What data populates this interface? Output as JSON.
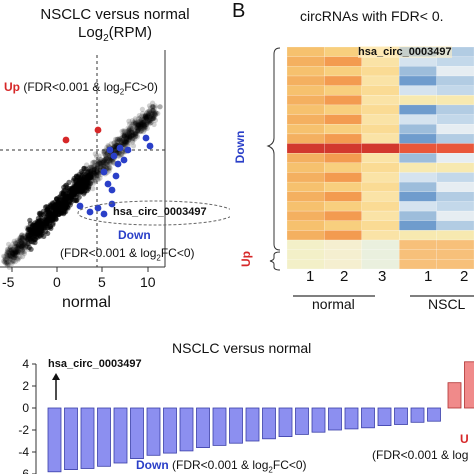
{
  "panelA": {
    "title_line1": "NSCLC versus normal",
    "title_line2_main": "Log",
    "title_line2_sub": "2",
    "title_line2_tail": "(RPM)",
    "up_label": "Up",
    "up_criteria_a": "(FDR<0.001 & log",
    "up_criteria_sub": "2",
    "up_criteria_b": "FC>0)",
    "callout": "hsa_circ_0003497",
    "down_label": "Down",
    "down_criteria_a": "(FDR<0.001 & log",
    "down_criteria_sub": "2",
    "down_criteria_b": "FC<0)",
    "xlabel": "normal",
    "xticks": [
      "-5",
      "0",
      "5",
      "10"
    ]
  },
  "panelB": {
    "letter": "B",
    "title": "circRNAs with FDR< 0.",
    "top_label": "hsa_circ_0003497",
    "down_label": "Down",
    "up_label": "Up",
    "normal_cols": [
      "1",
      "2",
      "3"
    ],
    "nsclc_cols": [
      "1",
      "2"
    ],
    "normal_group": "normal",
    "nsclc_group": "NSCL"
  },
  "panelC": {
    "title": "NSCLC versus normal",
    "arrow_label": "hsa_circ_0003497",
    "down_label": "Down",
    "down_criteria_a": "(FDR<0.001 & log",
    "down_criteria_sub": "2",
    "down_criteria_b": "FC<0)",
    "up_label": "U",
    "up_criteria": "(FDR<0.001 & log",
    "chart_data": {
      "type": "bar",
      "ylim": [
        -6,
        4
      ],
      "yticks": [
        "4",
        "2",
        "0",
        "-2",
        "-4",
        "-6"
      ],
      "down_values": [
        -5.8,
        -5.6,
        -5.5,
        -5.3,
        -5.0,
        -4.6,
        -4.3,
        -4.1,
        -3.9,
        -3.6,
        -3.4,
        -3.2,
        -3.0,
        -2.8,
        -2.6,
        -2.4,
        -2.2,
        -2.0,
        -1.9,
        -1.8,
        -1.6,
        -1.5,
        -1.3,
        -1.2
      ],
      "up_values": [
        2.3,
        4.2
      ]
    }
  },
  "colors": {
    "up_red": "#d62728",
    "down_blue": "#2a3fc8",
    "bar_fill": "#8c8ff0",
    "bar_up_fill": "#f08a8a"
  }
}
